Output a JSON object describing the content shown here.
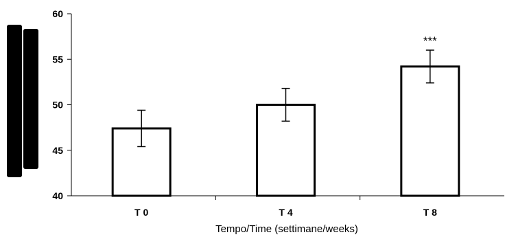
{
  "chart_data": {
    "type": "bar",
    "title": "",
    "xlabel": "Tempo/Time (settimane/weeks)",
    "ylabel": "",
    "categories": [
      "T0",
      "T4",
      "T8"
    ],
    "category_labels": [
      "T 0",
      "T 4",
      "T 8"
    ],
    "values": [
      47.4,
      50.0,
      54.2
    ],
    "errors": [
      2.0,
      1.8,
      1.8
    ],
    "annotations": [
      "",
      "",
      "***"
    ],
    "ylim": [
      40,
      60
    ],
    "yticks": [
      40,
      45,
      50,
      55,
      60
    ],
    "ytick_labels": [
      "40",
      "45",
      "50",
      "55",
      "60"
    ],
    "grid": false,
    "legend": "none",
    "bar_fill": "#ffffff",
    "bar_stroke": "#000000"
  }
}
